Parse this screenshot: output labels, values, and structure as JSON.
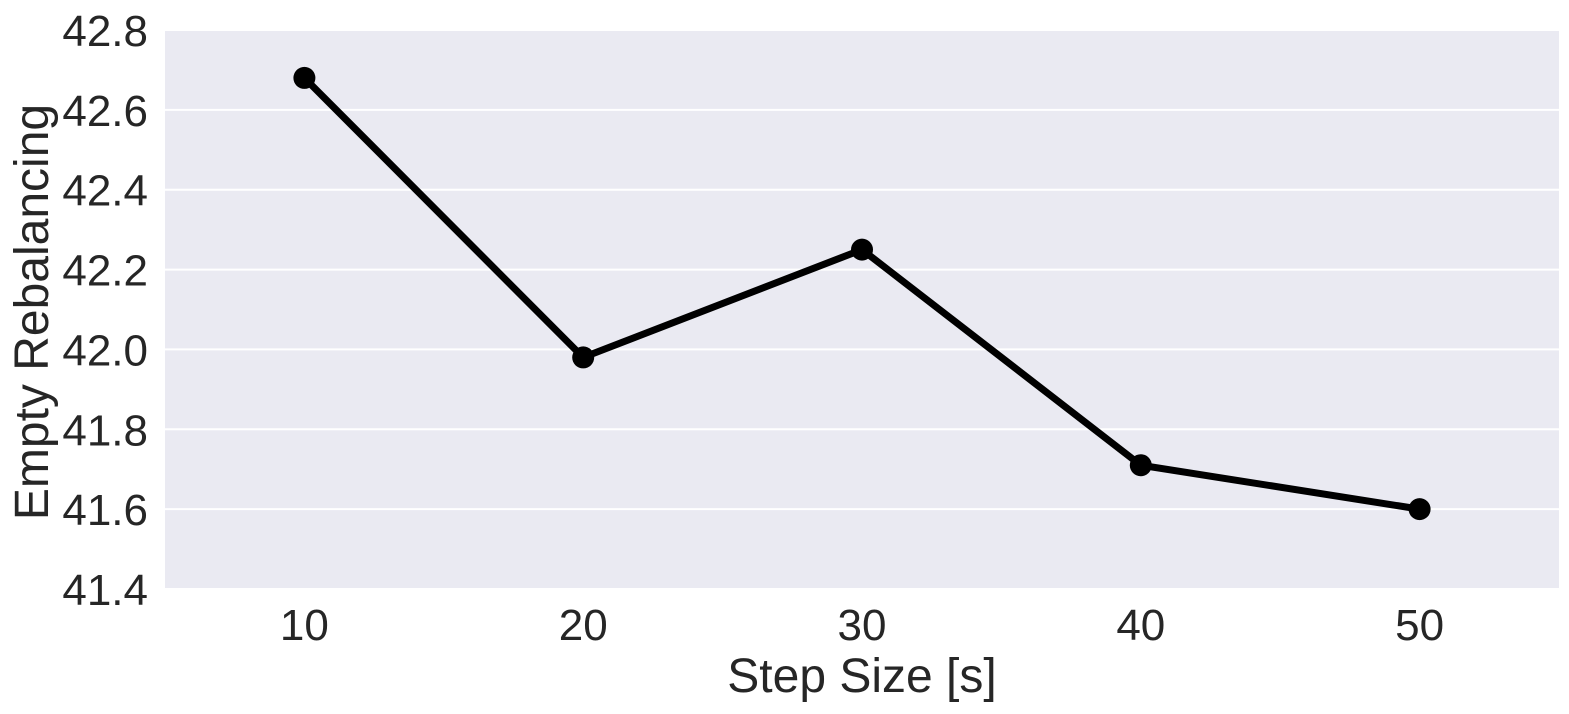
{
  "chart_data": {
    "type": "line",
    "title": "",
    "xlabel": "Step Size [s]",
    "ylabel": "Empty Rebalancing",
    "x": [
      10,
      20,
      30,
      40,
      50
    ],
    "series": [
      {
        "values": [
          42.68,
          41.98,
          42.25,
          41.71,
          41.6
        ]
      }
    ],
    "xlim": [
      5,
      55
    ],
    "ylim": [
      41.4,
      42.8
    ],
    "xticks": [
      10,
      20,
      30,
      40,
      50
    ],
    "xtick_labels": [
      "10",
      "20",
      "30",
      "40",
      "50"
    ],
    "yticks": [
      41.4,
      41.6,
      41.8,
      42.0,
      42.2,
      42.4,
      42.6,
      42.8
    ],
    "ytick_labels": [
      "41.4",
      "41.6",
      "41.8",
      "42.0",
      "42.2",
      "42.4",
      "42.6",
      "42.8"
    ],
    "grid": "horizontal",
    "legend": "none",
    "colors": {
      "plot_background": "#eaeaf2",
      "grid": "#ffffff",
      "line": "#000000",
      "marker": "#000000",
      "text": "#262626"
    }
  }
}
